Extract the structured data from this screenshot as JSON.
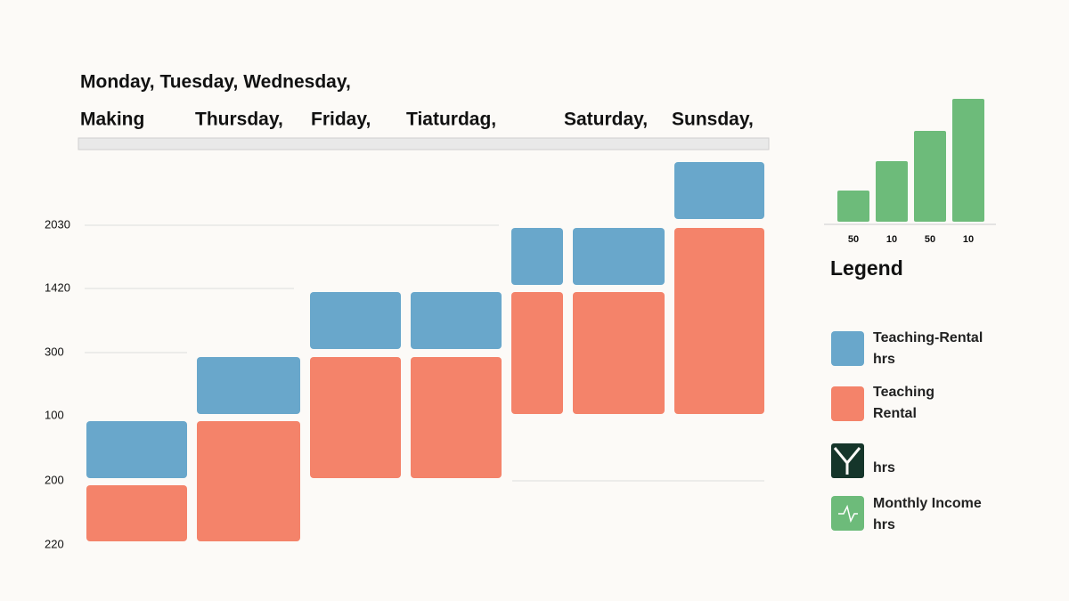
{
  "header": {
    "line1": "Monday, Tuesday, Wednesday,",
    "line2": [
      "Making",
      "Thursday,",
      "Friday,",
      "Tiaturdag,",
      "Saturday,",
      "Sunsday,"
    ]
  },
  "y_labels": [
    "2030",
    "1420",
    "300",
    "100",
    "200",
    "220"
  ],
  "mini_chart": {
    "labels": [
      "50",
      "10",
      "50",
      "10"
    ]
  },
  "legend": {
    "title": "Legend",
    "items": [
      {
        "lines": [
          "Teaching-Rental",
          "hrs"
        ]
      },
      {
        "lines": [
          "Teaching",
          "Rental"
        ]
      },
      {
        "lines": [
          "hrs"
        ]
      },
      {
        "lines": [
          "Monthly Income",
          "hrs"
        ]
      }
    ]
  }
}
